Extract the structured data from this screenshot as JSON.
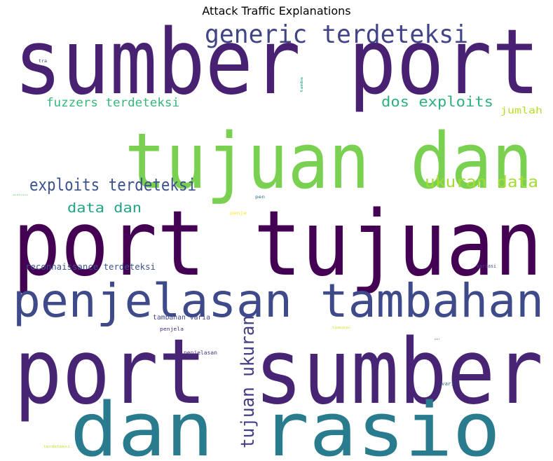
{
  "chart_data": {
    "type": "wordcloud",
    "title": "Attack Traffic Explanations",
    "colormap": "viridis",
    "background": "#ffffff",
    "words": [
      {
        "text": "sumber port",
        "weight": 1.0,
        "color": "#482173"
      },
      {
        "text": "port tujuan",
        "weight": 0.98,
        "color": "#440154"
      },
      {
        "text": "port sumber",
        "weight": 0.97,
        "color": "#482475"
      },
      {
        "text": "tujuan dan",
        "weight": 0.9,
        "color": "#7ad151"
      },
      {
        "text": "dan rasio",
        "weight": 0.86,
        "color": "#287c8e"
      },
      {
        "text": "penjelasan tambahan",
        "weight": 0.58,
        "color": "#3e4a89"
      },
      {
        "text": "generic terdeteksi",
        "weight": 0.36,
        "color": "#414487"
      },
      {
        "text": "tujuan ukuran",
        "weight": 0.3,
        "color": "#433e85"
      },
      {
        "text": "exploits terdeteksi",
        "weight": 0.27,
        "color": "#3b528b"
      },
      {
        "text": "ukuran data",
        "weight": 0.24,
        "color": "#a5db36"
      },
      {
        "text": "dos exploits",
        "weight": 0.22,
        "color": "#2db27d"
      },
      {
        "text": "fuzzers terdeteksi",
        "weight": 0.2,
        "color": "#35b779"
      },
      {
        "text": "data dan",
        "weight": 0.2,
        "color": "#20a386"
      },
      {
        "text": "jumlah",
        "weight": 0.15,
        "color": "#b5de2b"
      },
      {
        "text": "reconnaissance terdeteksi",
        "weight": 0.14,
        "color": "#3b528b"
      },
      {
        "text": "tambahan varia",
        "weight": 0.11,
        "color": "#404688"
      },
      {
        "text": "penjelasan",
        "weight": 0.1,
        "color": "#453781"
      },
      {
        "text": "penjela",
        "weight": 0.09,
        "color": "#482878"
      },
      {
        "text": "variasi",
        "weight": 0.08,
        "color": "#404688"
      },
      {
        "text": "vari",
        "weight": 0.08,
        "color": "#31688e"
      },
      {
        "text": "penje",
        "weight": 0.07,
        "color": "#fde725"
      },
      {
        "text": "pen",
        "weight": 0.07,
        "color": "#2c728e"
      },
      {
        "text": "tamba",
        "weight": 0.06,
        "color": "#1fa187"
      },
      {
        "text": "tra",
        "weight": 0.06,
        "color": "#46327e"
      },
      {
        "text": "terdeteksi",
        "weight": 0.06,
        "color": "#c8e020"
      },
      {
        "text": "tambahan",
        "weight": 0.05,
        "color": "#d0e11c"
      },
      {
        "text": "analysis",
        "weight": 0.04,
        "color": "#5ec962"
      },
      {
        "text": "por",
        "weight": 0.04,
        "color": "#31688e"
      }
    ]
  }
}
